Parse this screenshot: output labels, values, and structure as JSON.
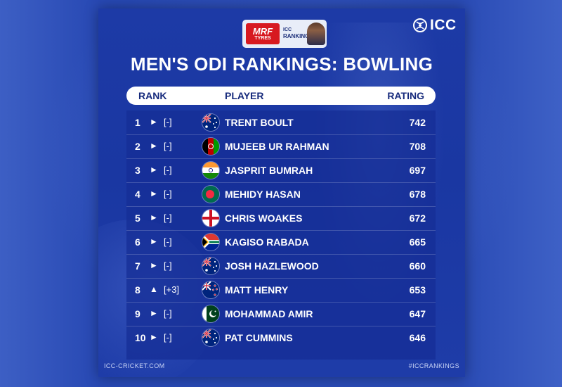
{
  "badge": {
    "sponsor_line1": "MRF",
    "sponsor_line2": "TYRES",
    "icc_line1": "ICC",
    "icc_line2": "RANKINGS"
  },
  "logo": {
    "text": "ICC"
  },
  "title": "MEN'S ODI RANKINGS: BOWLING",
  "header": {
    "rank": "RANK",
    "player": "PLAYER",
    "rating": "RATING"
  },
  "rows": [
    {
      "rank": "1",
      "movement": "►",
      "change": "[-]",
      "flag": "australia",
      "player": "TRENT BOULT",
      "rating": "742"
    },
    {
      "rank": "2",
      "movement": "►",
      "change": "[-]",
      "flag": "afghanistan",
      "player": "MUJEEB UR RAHMAN",
      "rating": "708"
    },
    {
      "rank": "3",
      "movement": "►",
      "change": "[-]",
      "flag": "india",
      "player": "JASPRIT BUMRAH",
      "rating": "697"
    },
    {
      "rank": "4",
      "movement": "►",
      "change": "[-]",
      "flag": "bangladesh",
      "player": "MEHIDY HASAN",
      "rating": "678"
    },
    {
      "rank": "5",
      "movement": "►",
      "change": "[-]",
      "flag": "england",
      "player": "CHRIS WOAKES",
      "rating": "672"
    },
    {
      "rank": "6",
      "movement": "►",
      "change": "[-]",
      "flag": "south-africa",
      "player": "KAGISO RABADA",
      "rating": "665"
    },
    {
      "rank": "7",
      "movement": "►",
      "change": "[-]",
      "flag": "australia",
      "player": "JOSH HAZLEWOOD",
      "rating": "660"
    },
    {
      "rank": "8",
      "movement": "▲",
      "change": "[+3]",
      "flag": "new-zealand",
      "player": "MATT HENRY",
      "rating": "653"
    },
    {
      "rank": "9",
      "movement": "►",
      "change": "[-]",
      "flag": "pakistan",
      "player": "MOHAMMAD AMIR",
      "rating": "647"
    },
    {
      "rank": "10",
      "movement": "►",
      "change": "[-]",
      "flag": "australia",
      "player": "PAT CUMMINS",
      "rating": "646"
    }
  ],
  "footer": {
    "left": "ICC-CRICKET.COM",
    "right": "#ICCRANKINGS"
  },
  "colors": {
    "card_blue": "#1d3aa6",
    "header_text": "#162a7c",
    "sponsor_red": "#d71920"
  }
}
